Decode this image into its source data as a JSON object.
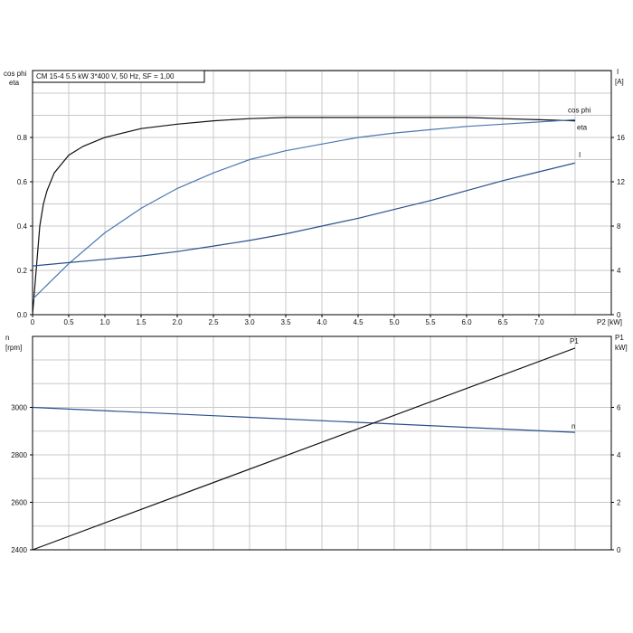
{
  "chart_data": [
    {
      "type": "line",
      "title": "CM 15-4   5.5 kW   3*400 V, 50 Hz, SF = 1,00",
      "xlabel": "P2 [kW]",
      "ylabel_left_top": "cos phi",
      "ylabel_left_bottom": "eta",
      "ylabel_right_top": "I",
      "ylabel_right_bottom": "[A]",
      "xlim": [
        0,
        7.5
      ],
      "ylim_left": [
        0,
        0.9
      ],
      "ylim_right": [
        0,
        18
      ],
      "x_ticks": [
        "0",
        "0.5",
        "1.0",
        "1.5",
        "2.0",
        "2.5",
        "3.0",
        "3.5",
        "4.0",
        "4.5",
        "5.0",
        "5.5",
        "6.0",
        "6.5",
        "7.0"
      ],
      "y_ticks_left": [
        "0.0",
        "0.2",
        "0.4",
        "0.6",
        "0.8"
      ],
      "y_ticks_right": [
        "0",
        "4",
        "8",
        "12",
        "16"
      ],
      "grid": true,
      "series": [
        {
          "name": "eta",
          "axis": "left",
          "color": "#111111",
          "x": [
            0.0,
            0.05,
            0.1,
            0.15,
            0.2,
            0.3,
            0.5,
            0.7,
            1.0,
            1.5,
            2.0,
            2.5,
            3.0,
            3.5,
            4.0,
            4.5,
            5.0,
            5.5,
            6.0,
            6.5,
            7.0,
            7.5
          ],
          "values": [
            0.0,
            0.2,
            0.4,
            0.5,
            0.56,
            0.64,
            0.72,
            0.76,
            0.8,
            0.84,
            0.86,
            0.875,
            0.885,
            0.89,
            0.89,
            0.89,
            0.89,
            0.89,
            0.89,
            0.885,
            0.88,
            0.875
          ]
        },
        {
          "name": "cos phi",
          "axis": "left",
          "color": "#4a78b0",
          "x": [
            0.0,
            0.5,
            1.0,
            1.5,
            2.0,
            2.5,
            3.0,
            3.5,
            4.0,
            4.5,
            5.0,
            5.5,
            6.0,
            6.5,
            7.0,
            7.5
          ],
          "values": [
            0.07,
            0.23,
            0.37,
            0.48,
            0.57,
            0.64,
            0.7,
            0.74,
            0.77,
            0.8,
            0.82,
            0.835,
            0.85,
            0.86,
            0.87,
            0.88
          ]
        },
        {
          "name": "I",
          "axis": "right",
          "color": "#2a4f8c",
          "x": [
            0.0,
            0.5,
            1.0,
            1.5,
            2.0,
            2.5,
            3.0,
            3.5,
            4.0,
            4.5,
            5.0,
            5.5,
            6.0,
            6.5,
            7.0,
            7.5
          ],
          "values": [
            4.4,
            4.7,
            5.0,
            5.3,
            5.7,
            6.2,
            6.7,
            7.3,
            8.0,
            8.7,
            9.5,
            10.3,
            11.2,
            12.1,
            12.9,
            13.7
          ]
        }
      ]
    },
    {
      "type": "line",
      "ylabel_left": "n",
      "ylabel_left_unit": "[rpm]",
      "ylabel_right": "P1",
      "ylabel_right_unit": "kW]",
      "xlim": [
        0,
        7.5
      ],
      "ylim_left": [
        2400,
        3200
      ],
      "ylim_right": [
        0,
        8
      ],
      "y_ticks_left": [
        "2400",
        "2600",
        "2800",
        "3000"
      ],
      "y_ticks_right": [
        "0",
        "2",
        "4",
        "6"
      ],
      "grid": true,
      "series": [
        {
          "name": "n",
          "axis": "left",
          "color": "#2a4f8c",
          "x": [
            0,
            7.5
          ],
          "values": [
            3000,
            2895
          ]
        },
        {
          "name": "P1",
          "axis": "right",
          "color": "#111111",
          "x": [
            0,
            7.5
          ],
          "values": [
            0,
            8.5
          ]
        }
      ]
    }
  ]
}
